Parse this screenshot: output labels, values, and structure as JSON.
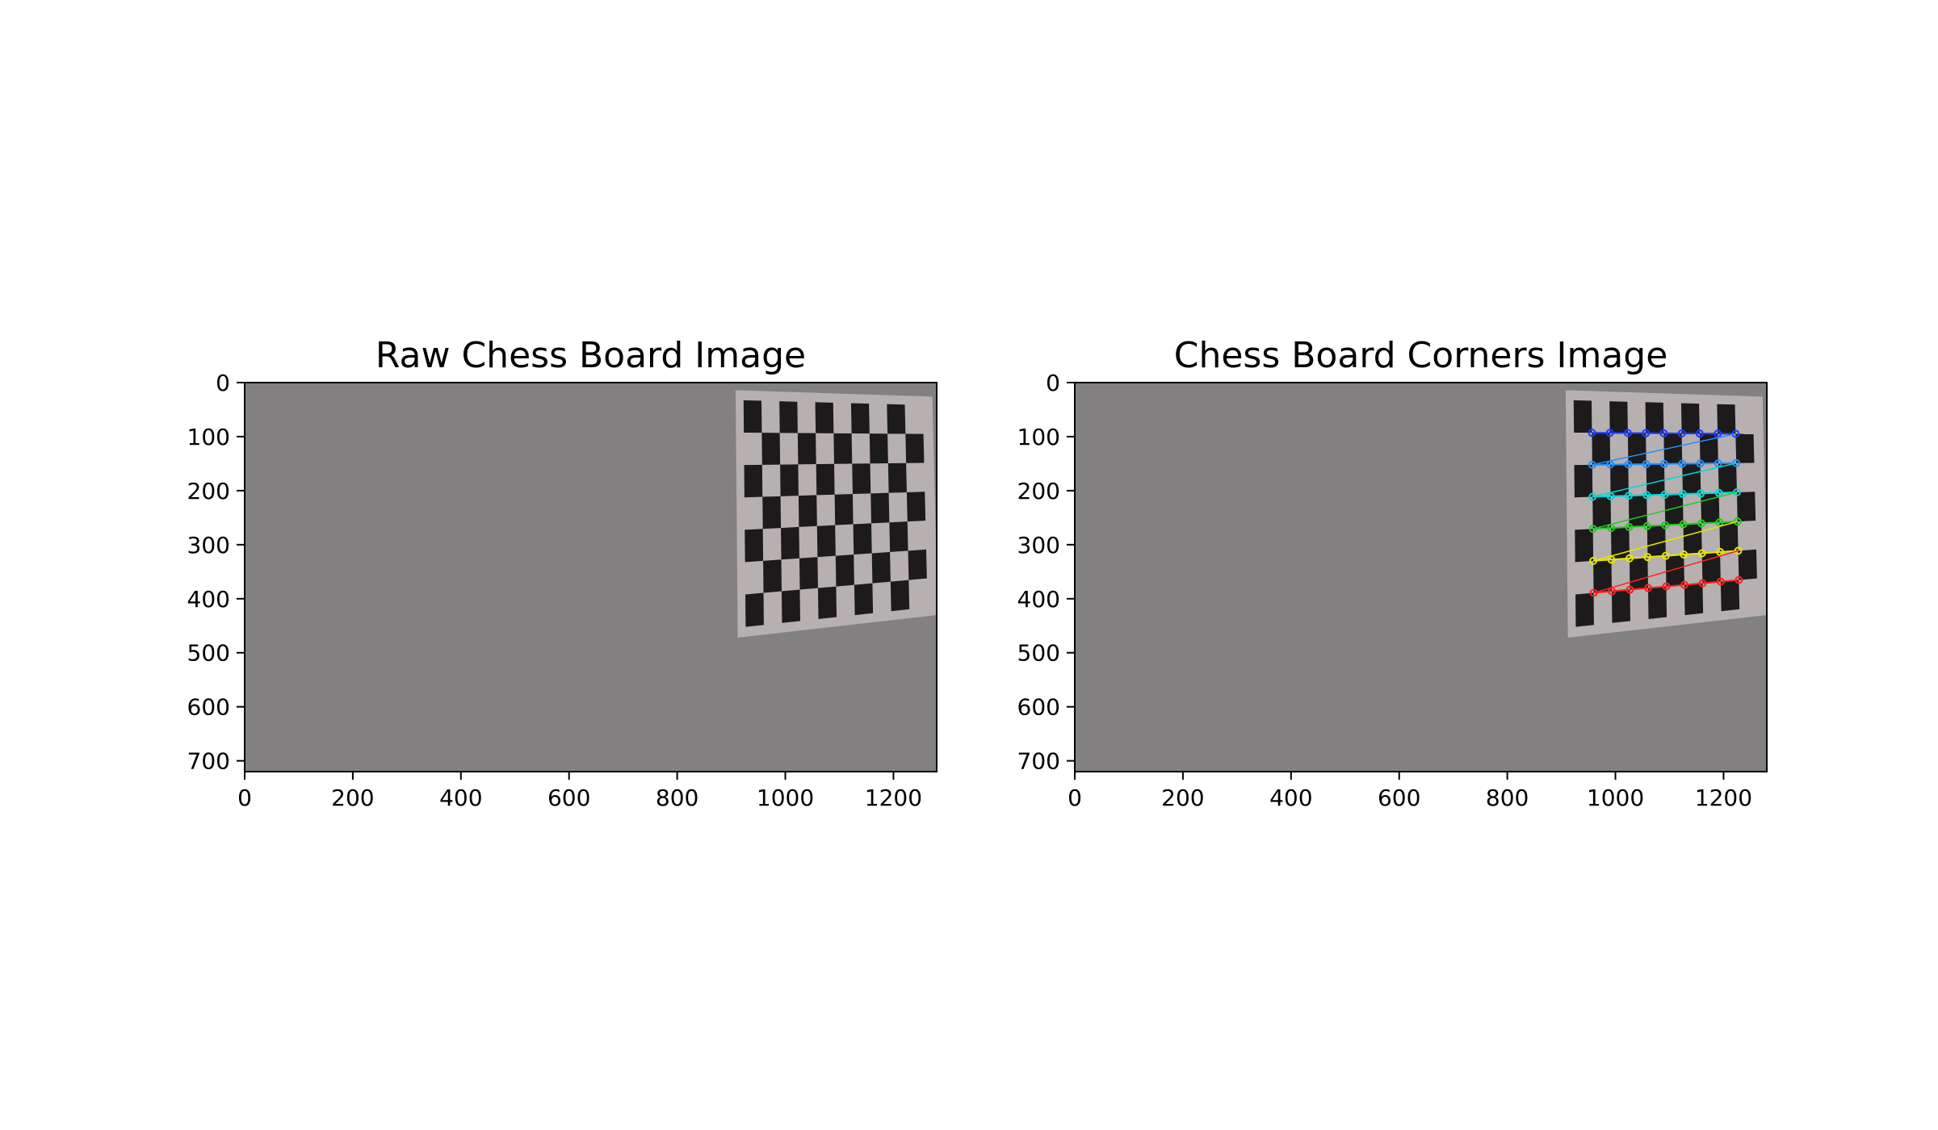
{
  "figure": {
    "background": "#ffffff"
  },
  "panels": [
    {
      "id": "raw",
      "title": "Raw Chess Board Image",
      "xlim": [
        0,
        1280
      ],
      "ylim": [
        720,
        0
      ],
      "xticks": [
        0,
        200,
        400,
        600,
        800,
        1000,
        1200
      ],
      "yticks": [
        0,
        100,
        200,
        300,
        400,
        500,
        600,
        700
      ],
      "show_corners": false
    },
    {
      "id": "corners",
      "title": "Chess Board Corners Image",
      "xlim": [
        0,
        1280
      ],
      "ylim": [
        720,
        0
      ],
      "xticks": [
        0,
        200,
        400,
        600,
        800,
        1000,
        1200
      ],
      "yticks": [
        0,
        100,
        200,
        300,
        400,
        500,
        600,
        700
      ],
      "show_corners": true
    }
  ],
  "photo": {
    "wall_color": "#828080",
    "paper_color": "#b7b0b0",
    "square_color": "#1c1a1b",
    "paper_quad": [
      [
        908,
        14
      ],
      [
        1272,
        26
      ],
      [
        1282,
        430
      ],
      [
        912,
        472
      ]
    ],
    "board_rows": 6,
    "board_cols": 9,
    "corner_grid_rows": 6,
    "corner_grid_cols": 9,
    "corner_row_colors": [
      "#1f3cff",
      "#1e90ff",
      "#00d8d8",
      "#22cc22",
      "#e6e600",
      "#ff2020"
    ]
  }
}
